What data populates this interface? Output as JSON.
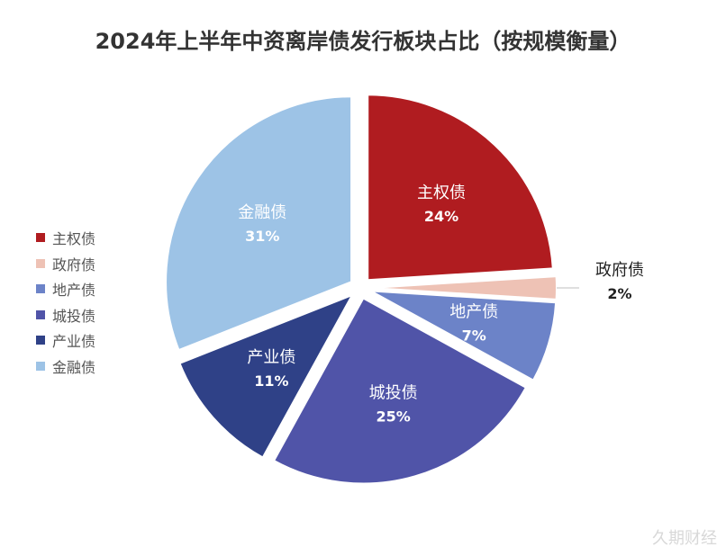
{
  "chart_data": {
    "type": "pie",
    "title": "2024年上半年中资离岸债发行板块占比（按规模衡量）",
    "slices": [
      {
        "label": "主权债",
        "value": 24,
        "value_label": "24%",
        "color": "#B01C20",
        "label_color": "#ffffff"
      },
      {
        "label": "政府债",
        "value": 2,
        "value_label": "2%",
        "color": "#EEC2B5",
        "label_color": "#222222"
      },
      {
        "label": "地产债",
        "value": 7,
        "value_label": "7%",
        "color": "#6C83C8",
        "label_color": "#ffffff"
      },
      {
        "label": "城投债",
        "value": 25,
        "value_label": "25%",
        "color": "#5054A8",
        "label_color": "#ffffff"
      },
      {
        "label": "产业债",
        "value": 11,
        "value_label": "11%",
        "color": "#2F4187",
        "label_color": "#ffffff"
      },
      {
        "label": "金融债",
        "value": 31,
        "value_label": "31%",
        "color": "#9DC3E6",
        "label_color": "#ffffff"
      }
    ],
    "legend_position": "left"
  },
  "watermark": "久期财经"
}
